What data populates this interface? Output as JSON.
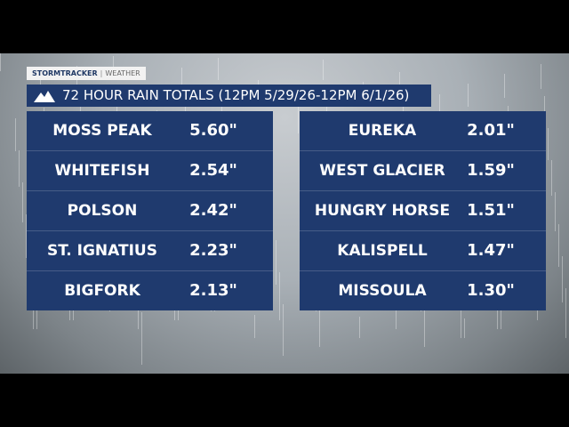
{
  "header": {
    "brand": "STORMTRACKER",
    "section": "WEATHER",
    "title": "72 HOUR RAIN TOTALS (12PM 5/29/26-12PM 6/1/26)"
  },
  "table": {
    "left": [
      [
        "MOSS PEAK",
        "5.60\""
      ],
      [
        "WHITEFISH",
        "2.54\""
      ],
      [
        "POLSON",
        "2.42\""
      ],
      [
        "ST. IGNATIUS",
        "2.23\""
      ],
      [
        "BIGFORK",
        "2.13\""
      ]
    ],
    "right": [
      [
        "EUREKA",
        "2.01\""
      ],
      [
        "WEST GLACIER",
        "1.59\""
      ],
      [
        "HUNGRY HORSE",
        "1.51\""
      ],
      [
        "KALISPELL",
        "1.47\""
      ],
      [
        "MISSOULA",
        "1.30\""
      ]
    ]
  }
}
